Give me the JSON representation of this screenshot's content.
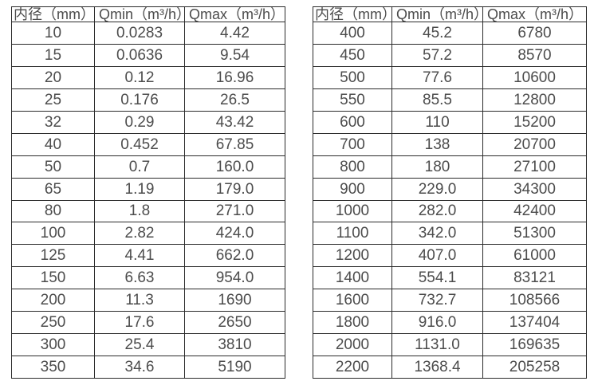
{
  "colors": {
    "background": "#ffffff",
    "border": "#2b2b2b",
    "text": "#4c4c4c"
  },
  "chart_data": [
    {
      "type": "table",
      "name": "flow-table-left",
      "headers": [
        "内径（mm）",
        "Qmin（m³/h）",
        "Qmax（m³/h）"
      ],
      "rows": [
        [
          "10",
          "0.0283",
          "4.42"
        ],
        [
          "15",
          "0.0636",
          "9.54"
        ],
        [
          "20",
          "0.12",
          "16.96"
        ],
        [
          "25",
          "0.176",
          "26.5"
        ],
        [
          "32",
          "0.29",
          "43.42"
        ],
        [
          "40",
          "0.452",
          "67.85"
        ],
        [
          "50",
          "0.7",
          "160.0"
        ],
        [
          "65",
          "1.19",
          "179.0"
        ],
        [
          "80",
          "1.8",
          "271.0"
        ],
        [
          "100",
          "2.82",
          "424.0"
        ],
        [
          "125",
          "4.41",
          "662.0"
        ],
        [
          "150",
          "6.63",
          "954.0"
        ],
        [
          "200",
          "11.3",
          "1690"
        ],
        [
          "250",
          "17.6",
          "2650"
        ],
        [
          "300",
          "25.4",
          "3810"
        ],
        [
          "350",
          "34.6",
          "5190"
        ]
      ]
    },
    {
      "type": "table",
      "name": "flow-table-right",
      "headers": [
        "内径（mm）",
        "Qmin（m³/h）",
        "Qmax（m³/h）"
      ],
      "rows": [
        [
          "400",
          "45.2",
          "6780"
        ],
        [
          "450",
          "57.2",
          "8570"
        ],
        [
          "500",
          "77.6",
          "10600"
        ],
        [
          "550",
          "85.5",
          "12800"
        ],
        [
          "600",
          "110",
          "15200"
        ],
        [
          "700",
          "138",
          "20700"
        ],
        [
          "800",
          "180",
          "27100"
        ],
        [
          "900",
          "229.0",
          "34300"
        ],
        [
          "1000",
          "282.0",
          "42400"
        ],
        [
          "1100",
          "342.0",
          "51300"
        ],
        [
          "1200",
          "407.0",
          "61000"
        ],
        [
          "1400",
          "554.1",
          "83121"
        ],
        [
          "1600",
          "732.7",
          "108566"
        ],
        [
          "1800",
          "916.0",
          "137404"
        ],
        [
          "2000",
          "1131.0",
          "169635"
        ],
        [
          "2200",
          "1368.4",
          "205258"
        ]
      ]
    }
  ]
}
